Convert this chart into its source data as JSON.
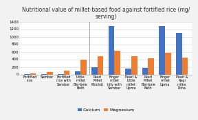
{
  "title": "Nutritional value of millet-based food against fortified rice (mg/\nserving)",
  "categories": [
    "Fortified\nrice",
    "Sambar",
    "Fortified\nrice with\nSambar",
    "Little\nmillet\nBisi-bele\nBath",
    "Pearl\nMillet\nKhichdi",
    "Finger\nmillet\nIdly with\nSambar",
    "Pearl &\nLittle\nmillet\nUpma",
    "Pearl\nMillet\nBisi-bele\nBath",
    "Finger\nmillet\nUpma",
    "Pearl &\nRagi\nmilka\nPoha"
  ],
  "calcium": [
    5,
    10,
    18,
    80,
    200,
    1280,
    150,
    170,
    1280,
    1100
  ],
  "magnesium": [
    28,
    55,
    95,
    400,
    475,
    620,
    490,
    420,
    575,
    450
  ],
  "bar_color_calcium": "#4472C4",
  "bar_color_magnesium": "#ED7D31",
  "ylim": [
    0,
    1400
  ],
  "yticks": [
    0,
    200,
    400,
    600,
    800,
    1000,
    1200,
    1400
  ],
  "bg_color": "#f2f2f2",
  "plot_bg_color": "#ffffff",
  "grid_color": "#d9d9d9",
  "legend_calcium": "Calcium",
  "legend_magnesium": "Magnesium",
  "bar_width": 0.35,
  "title_fontsize": 5.5,
  "tick_fontsize": 3.5,
  "ytick_fontsize": 4.0,
  "legend_fontsize": 4.5,
  "vline_x": 3.5,
  "vline_color": "#aaaaaa"
}
